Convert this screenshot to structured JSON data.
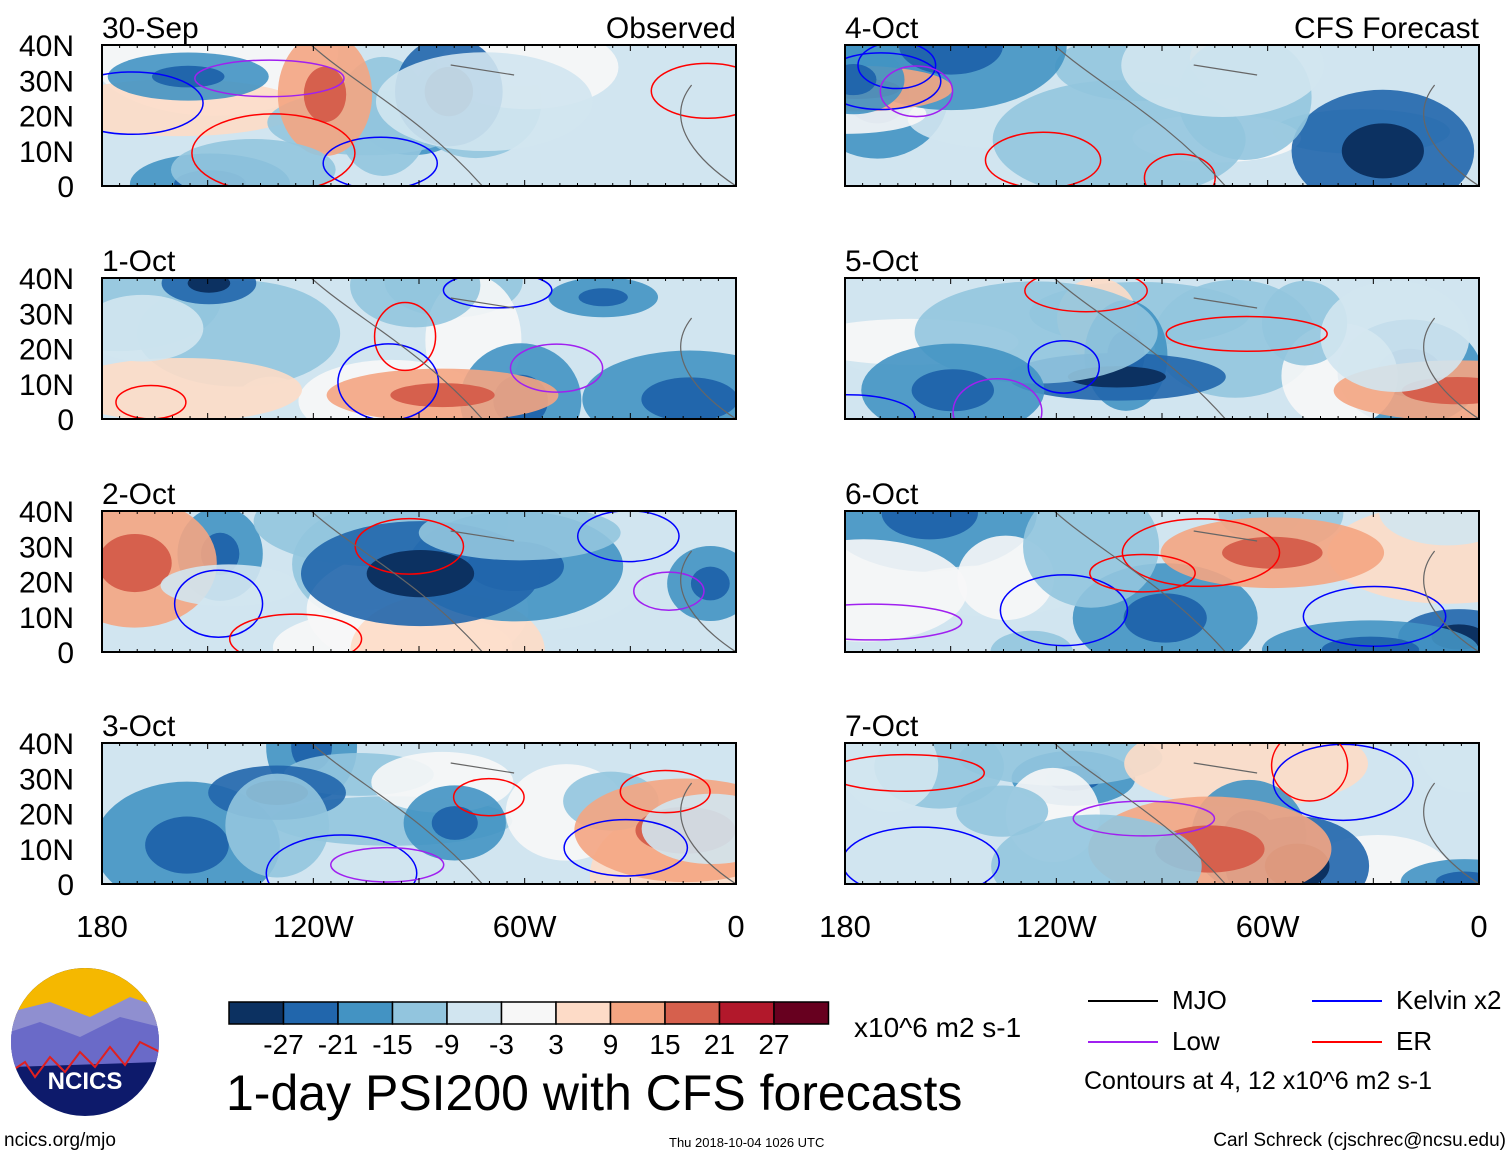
{
  "chart_data": {
    "type": "heatmap",
    "title": "1-day PSI200 with CFS forecasts",
    "units": "x10^6 m2 s-1",
    "left_column_title": "Observed",
    "right_column_title": "CFS Forecast",
    "panels_left": [
      "30-Sep",
      "1-Oct",
      "2-Oct",
      "3-Oct"
    ],
    "panels_right": [
      "4-Oct",
      "5-Oct",
      "6-Oct",
      "7-Oct"
    ],
    "lat_ticks": [
      "40N",
      "30N",
      "20N",
      "10N",
      "0"
    ],
    "lon_ticks": [
      "180",
      "120W",
      "60W",
      "0"
    ],
    "ylim": [
      0,
      40
    ],
    "xlim": [
      -180,
      0
    ],
    "colorbar": {
      "labels": [
        "-27",
        "-21",
        "-15",
        "-9",
        "-3",
        "3",
        "9",
        "15",
        "21",
        "27"
      ],
      "colors": [
        "#0c3161",
        "#2166ac",
        "#4393c3",
        "#92c5de",
        "#d1e5f0",
        "#f7f7f7",
        "#fddbc7",
        "#f4a582",
        "#d6604d",
        "#b2182b",
        "#67001f"
      ]
    },
    "legend": [
      {
        "label": "MJO",
        "color": "#000000"
      },
      {
        "label": "Kelvin x2",
        "color": "#0000ff"
      },
      {
        "label": "Low",
        "color": "#a020f0"
      },
      {
        "label": "ER",
        "color": "#ff0000"
      }
    ],
    "contour_note": "Contours at 4, 12 x10^6 m2 s-1"
  },
  "footer": {
    "logo_text": "NCICS",
    "url": "ncics.org/mjo",
    "timestamp": "Thu 2018-10-04 1026 UTC",
    "author": "Carl Schreck (cjschrec@ncsu.edu)"
  }
}
